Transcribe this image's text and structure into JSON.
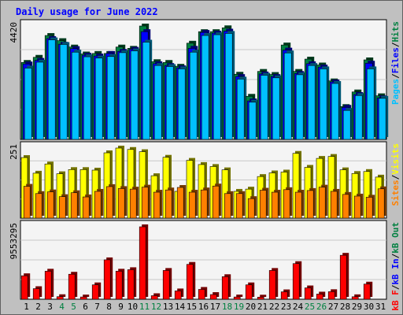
{
  "title": "Daily usage for June 2022",
  "colors": {
    "background": "#c0c0c0",
    "plot_background": "#f4f4f4",
    "hits": "#008040",
    "files": "#0000ff",
    "pages": "#00c0ff",
    "visits": "#ffff00",
    "sites": "#ff8000",
    "kb_f": "#ff0000",
    "kb_in": "#0000ff",
    "kb_out": "#008040"
  },
  "chart_data": [
    {
      "type": "bar",
      "panel": "hits-files-pages",
      "categories": [
        "1",
        "2",
        "3",
        "4",
        "5",
        "6",
        "7",
        "8",
        "9",
        "10",
        "11",
        "12",
        "13",
        "14",
        "15",
        "16",
        "17",
        "18",
        "19",
        "20",
        "21",
        "22",
        "23",
        "24",
        "25",
        "26",
        "27",
        "28",
        "29",
        "30",
        "31"
      ],
      "ymax_label": "4420",
      "ylim": [
        0,
        4420
      ],
      "legend": [
        "Pages",
        "/",
        "Files",
        "/",
        "Hits"
      ],
      "series": [
        {
          "name": "Hits",
          "values": [
            3000,
            3200,
            4050,
            3850,
            3600,
            3330,
            3350,
            3350,
            3600,
            3550,
            4420,
            3030,
            3000,
            2850,
            3750,
            4200,
            4200,
            4350,
            2540,
            1680,
            2650,
            2530,
            3680,
            2650,
            3130,
            2900,
            2280,
            1280,
            1850,
            3100,
            1700
          ]
        },
        {
          "name": "Files",
          "values": [
            2940,
            3080,
            3930,
            3710,
            3540,
            3280,
            3250,
            3350,
            3430,
            3510,
            4200,
            2950,
            2880,
            2790,
            3550,
            4170,
            4140,
            4220,
            2450,
            1500,
            2550,
            2450,
            3480,
            2570,
            2950,
            2820,
            2240,
            1250,
            1750,
            2970,
            1620
          ]
        },
        {
          "name": "Pages",
          "values": [
            2780,
            3010,
            3880,
            3700,
            3400,
            3220,
            3170,
            3230,
            3380,
            3450,
            3790,
            2880,
            2840,
            2750,
            3400,
            4050,
            4080,
            4130,
            2350,
            1450,
            2500,
            2400,
            3370,
            2520,
            2880,
            2750,
            2180,
            1130,
            1710,
            2750,
            1600
          ]
        }
      ]
    },
    {
      "type": "bar",
      "panel": "visits-sites",
      "categories": [
        "1",
        "2",
        "3",
        "4",
        "5",
        "6",
        "7",
        "8",
        "9",
        "10",
        "11",
        "12",
        "13",
        "14",
        "15",
        "16",
        "17",
        "18",
        "19",
        "20",
        "21",
        "22",
        "23",
        "24",
        "25",
        "26",
        "27",
        "28",
        "29",
        "30",
        "31"
      ],
      "ymax_label": "251",
      "ylim": [
        0,
        251
      ],
      "legend": [
        "Sites",
        "/",
        "Visits"
      ],
      "series": [
        {
          "name": "Visits",
          "values": [
            217,
            161,
            194,
            159,
            174,
            174,
            172,
            234,
            251,
            246,
            238,
            152,
            218,
            96,
            207,
            192,
            185,
            173,
            96,
            104,
            149,
            162,
            165,
            232,
            182,
            214,
            221,
            173,
            160,
            167,
            147
          ]
        },
        {
          "name": "Sites",
          "values": [
            114,
            88,
            94,
            77,
            91,
            76,
            96,
            113,
            106,
            104,
            111,
            93,
            101,
            110,
            93,
            101,
            115,
            88,
            88,
            70,
            100,
            93,
            102,
            93,
            99,
            111,
            96,
            85,
            79,
            75,
            105
          ]
        }
      ]
    },
    {
      "type": "bar",
      "panel": "kbytes",
      "categories": [
        "1",
        "2",
        "3",
        "4",
        "5",
        "6",
        "7",
        "8",
        "9",
        "10",
        "11",
        "12",
        "13",
        "14",
        "15",
        "16",
        "17",
        "18",
        "19",
        "20",
        "21",
        "22",
        "23",
        "24",
        "25",
        "26",
        "27",
        "28",
        "29",
        "30",
        "31"
      ],
      "ymax_label": "9553295",
      "ylim": [
        0,
        9553295
      ],
      "legend": [
        "kB F",
        "/",
        "kB In",
        "/",
        "kB Out"
      ],
      "series": [
        {
          "name": "kB F",
          "values": [
            3100000,
            1400000,
            3700000,
            340000,
            3300000,
            300000,
            1900000,
            5200000,
            3700000,
            3900000,
            9553295,
            470000,
            3800000,
            1100000,
            4600000,
            1300000,
            620000,
            2980000,
            300000,
            1900000,
            280000,
            3800000,
            980000,
            4700000,
            1500000,
            680000,
            1000000,
            5800000,
            330000,
            2000000,
            0
          ]
        },
        {
          "name": "kB In",
          "values": [
            0,
            0,
            0,
            0,
            0,
            0,
            0,
            0,
            0,
            0,
            0,
            0,
            0,
            0,
            0,
            0,
            0,
            0,
            0,
            0,
            0,
            0,
            0,
            0,
            0,
            0,
            0,
            0,
            0,
            0,
            0
          ]
        },
        {
          "name": "kB Out",
          "values": [
            0,
            0,
            0,
            0,
            0,
            0,
            0,
            0,
            0,
            0,
            0,
            0,
            0,
            0,
            0,
            0,
            0,
            0,
            0,
            0,
            0,
            0,
            0,
            0,
            0,
            0,
            0,
            0,
            0,
            0,
            0
          ]
        }
      ]
    }
  ]
}
